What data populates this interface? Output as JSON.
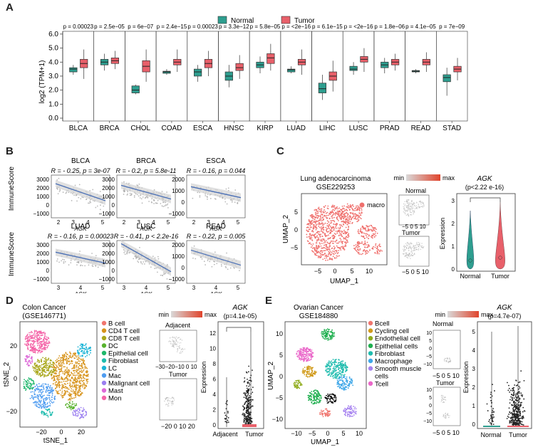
{
  "figure": {
    "panel_letters": [
      "A",
      "B",
      "C",
      "D",
      "E"
    ]
  },
  "panelA": {
    "legend": {
      "normal": "Normal",
      "tumor": "Tumor"
    },
    "ylabel": "log2 (TPM+1)",
    "yticks": [
      "0.0",
      "1.0",
      "2.0",
      "3.0",
      "4.0",
      "5.0",
      "6.0"
    ],
    "colors": {
      "normal": "#2e9e8f",
      "tumor": "#e8606a"
    },
    "cancers": [
      "BLCA",
      "BRCA",
      "CHOL",
      "COAD",
      "ESCA",
      "HNSC",
      "KIRP",
      "LUAD",
      "LIHC",
      "LUSC",
      "PRAD",
      "READ",
      "STAD"
    ],
    "pvalues": [
      "p = 0.00023",
      "p = 2.5e−05",
      "p = 6e−07",
      "p = 2.4e−15",
      "p = 0.00023",
      "p = 3.3e−12",
      "p = 5.8e−05",
      "p = <2e−16",
      "p = 6.1e−15",
      "p = <2e−16",
      "p = 1.8e−06",
      "p = 4.1e−05",
      "p = 7e−09"
    ]
  },
  "panelB": {
    "ylabel": "ImmuneScore",
    "xlabel": "AGK",
    "yticks": [
      "3000",
      "2000",
      "1000",
      "0",
      "−1000"
    ],
    "plots": [
      {
        "name": "BLCA",
        "stat": "R = - 0.25, p = 3e-07",
        "xticks": [
          "2",
          "3",
          "4",
          "5"
        ]
      },
      {
        "name": "BRCA",
        "stat": "R = - 0.2, p = 5.8e-11",
        "xticks": [
          "2",
          "3",
          "4",
          "5"
        ]
      },
      {
        "name": "ESCA",
        "stat": "R = - 0.16, p = 0.044",
        "xticks": [
          "2",
          "3",
          "4",
          "5"
        ]
      },
      {
        "name": "LUAD",
        "stat": "R = - 0.16, p = 0.00023",
        "xticks": [
          "3",
          "4",
          "5"
        ]
      },
      {
        "name": "LUSC",
        "stat": "R = - 0.41, p < 2.2e-16",
        "xticks": [
          "3",
          "4",
          "5"
        ]
      },
      {
        "name": "READ",
        "stat": "R = - 0.22, p = 0.005",
        "xticks": [
          "3",
          "4",
          "5"
        ]
      }
    ],
    "colors": {
      "point": "#a9a9a9",
      "line": "#4a6fb5",
      "band": "#d3d3d3"
    }
  },
  "panelC": {
    "title1": "Lung adenocarcinoma",
    "title2": "GSE229253",
    "legend_label": "macro",
    "xlabel": "UMAP_1",
    "ylabel": "UMAP_2",
    "xticks": [
      "−5",
      "0",
      "5",
      "10"
    ],
    "yticks": [
      "5",
      "0",
      "−5"
    ],
    "scale_min": "min",
    "scale_max": "max",
    "normal_label": "Normal",
    "tumor_label": "Tumor",
    "small_xticks": "−5 0 5 10",
    "violin_title": "AGK",
    "violin_p": "(p<2.22 e-16)",
    "violin_ylabel": "Expression",
    "violin_yticks": [
      "3",
      "2",
      "1",
      "0"
    ],
    "violin_groups": [
      "Normal",
      "Tumor"
    ],
    "cluster_color": "#ef6f6c"
  },
  "panelD": {
    "title1": "Colon Cancer",
    "title2": "(GSE146771)",
    "xlabel": "tSNE_1",
    "ylabel": "tSNE_2",
    "xticks": [
      "−20",
      "0",
      "20"
    ],
    "yticks": [
      "20",
      "0",
      "−20"
    ],
    "legend": [
      {
        "label": "B cell",
        "color": "#f0766f"
      },
      {
        "label": "CD4 T cell",
        "color": "#d7931b"
      },
      {
        "label": "CD8 T cell",
        "color": "#a9a71b"
      },
      {
        "label": "DC",
        "color": "#58b22d"
      },
      {
        "label": "Epithelial cell",
        "color": "#1fb76b"
      },
      {
        "label": "Fibroblast",
        "color": "#1fbcae"
      },
      {
        "label": "LC",
        "color": "#1bb4d6"
      },
      {
        "label": "Mac",
        "color": "#4f9cf0"
      },
      {
        "label": "Malignant cell",
        "color": "#9b7ff0"
      },
      {
        "label": "Mast",
        "color": "#dd6ad8"
      },
      {
        "label": "Mon",
        "color": "#f464a8"
      }
    ],
    "scale_min": "min",
    "scale_max": "max",
    "adjacent_label": "Adjacent",
    "tumor_label": "Tumor",
    "small_xticks": "−30−20−10 0 10",
    "small_xticks2": "−20 0 10 20",
    "violin_title": "AGK",
    "violin_p": "(p=4.1e-05)",
    "violin_ylabel": "Expression",
    "violin_yticks": [
      "12",
      "10",
      "8",
      "6",
      "4",
      "2",
      "0"
    ],
    "violin_groups": [
      "Adjacent",
      "Tumor"
    ]
  },
  "panelE": {
    "title1": "Ovarian Cancer",
    "title2": "GSE184880",
    "xlabel": "UMAP_1",
    "ylabel": "UMAP_2",
    "xticks": [
      "−10",
      "−5",
      "0",
      "5",
      "10"
    ],
    "yticks": [
      "10",
      "5",
      "0",
      "−5",
      "−10"
    ],
    "legend": [
      {
        "label": "Bcell",
        "color": "#f0766f"
      },
      {
        "label": "Cycling cell",
        "color": "#d19a1a"
      },
      {
        "label": "Endothelial cell",
        "color": "#8fab1b"
      },
      {
        "label": "Epithelial cells",
        "color": "#1faf4f"
      },
      {
        "label": "Fibroblast",
        "color": "#1fbcae"
      },
      {
        "label": "Macrophage",
        "color": "#3da6e8"
      },
      {
        "label": "Smooth muscle",
        "color": "#a783f0"
      },
      {
        "label": "cells",
        "color": ""
      },
      {
        "label": "Tcell",
        "color": "#ea67c9"
      }
    ],
    "scale_min": "min",
    "scale_max": "max",
    "normal_label": "Normal",
    "tumor_label": "Tumor",
    "small_yticks": [
      "10",
      "5",
      "0",
      "−5",
      "−10"
    ],
    "small_xticks": "−5 0 5 10",
    "violin_title": "AGK",
    "violin_p": "(p=4.7e-07)",
    "violin_ylabel": "Expression",
    "violin_yticks": [
      "5",
      "4",
      "3",
      "2",
      "1",
      "0"
    ],
    "violin_groups": [
      "Normal",
      "Tumor"
    ]
  }
}
